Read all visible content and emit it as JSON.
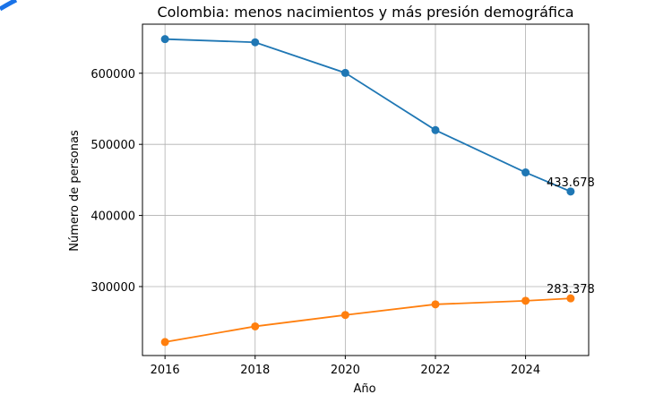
{
  "chart_data": {
    "type": "line",
    "title": "Colombia: menos nacimientos y más presión demográfica",
    "xlabel": "Año",
    "ylabel": "Número de personas",
    "x": [
      2016,
      2018,
      2020,
      2022,
      2024,
      2025
    ],
    "xticks": [
      2016,
      2018,
      2020,
      2022,
      2024
    ],
    "yticks": [
      300000,
      400000,
      500000,
      600000
    ],
    "xlim": [
      2015.5,
      2025.4
    ],
    "ylim": [
      203000,
      669000
    ],
    "grid": true,
    "series": [
      {
        "color": "#1f77b4",
        "values": [
          648000,
          643500,
          600500,
          520000,
          460500,
          433678
        ],
        "end_label": "433.678"
      },
      {
        "color": "#ff7f0e",
        "values": [
          222000,
          244000,
          260000,
          275000,
          280000,
          283378
        ],
        "end_label": "283.378"
      }
    ]
  }
}
